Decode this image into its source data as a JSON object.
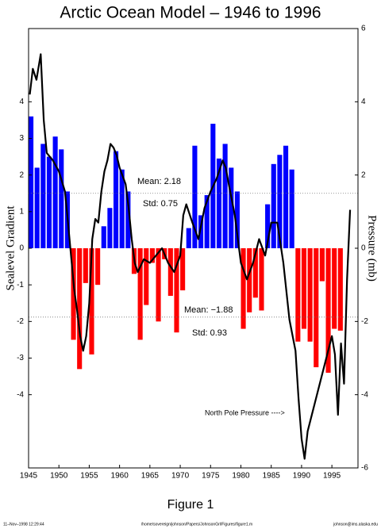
{
  "chart_data": {
    "type": "bar",
    "title": "Arctic Ocean Model – 1946 to 1996",
    "ylabel": "Sealevel Gradient",
    "y2label": "Pressure (mb)",
    "caption": "Figure 1",
    "footer": [
      "11–Nov–1998 12:29:44",
      "/home/sovereign/johnson/Papers/JohnsonGrl/Figures/figure1.m",
      "johnson@ims.alaska.edu"
    ],
    "annotations": [
      "Mean: 2.18",
      "Std: 0.75",
      "Mean: −1.88",
      "Std: 0.93",
      "North Pole Pressure ---->"
    ],
    "hlines": [
      1.5,
      -1.88
    ],
    "xlim": [
      1945,
      1999.3
    ],
    "xticks": [
      1945,
      1950,
      1955,
      1960,
      1965,
      1970,
      1975,
      1980,
      1985,
      1990,
      1995
    ],
    "ylim": [
      -6,
      6
    ],
    "yticks": [
      -4,
      -3,
      -2,
      -1,
      0,
      1,
      2,
      3,
      4
    ],
    "y2lim": [
      -6,
      6
    ],
    "y2ticks": [
      -6,
      -4,
      -2,
      0,
      2,
      4,
      6
    ],
    "positive_color": "#0000ff",
    "negative_color": "#ff0000",
    "bars": {
      "x": [
        1945,
        1946,
        1947,
        1948,
        1949,
        1950,
        1951,
        1952,
        1953,
        1954,
        1955,
        1956,
        1957,
        1958,
        1959,
        1960,
        1961,
        1962,
        1963,
        1964,
        1965,
        1966,
        1967,
        1968,
        1969,
        1970,
        1971,
        1972,
        1973,
        1974,
        1975,
        1976,
        1977,
        1978,
        1979,
        1980,
        1981,
        1982,
        1983,
        1984,
        1985,
        1986,
        1987,
        1988,
        1989,
        1990,
        1991,
        1992,
        1993,
        1994,
        1995,
        1996
      ],
      "values": [
        3.6,
        2.2,
        2.85,
        2.5,
        3.05,
        2.7,
        1.55,
        -2.5,
        -3.3,
        -0.95,
        -2.9,
        -1.0,
        0.6,
        1.1,
        2.65,
        2.15,
        1.55,
        -0.7,
        -2.5,
        -1.55,
        -0.4,
        -2.0,
        -0.3,
        -1.3,
        -2.3,
        -1.15,
        0.55,
        2.8,
        0.9,
        1.45,
        3.4,
        2.45,
        2.85,
        2.2,
        1.55,
        -2.2,
        -1.75,
        -1.35,
        -1.7,
        1.2,
        2.3,
        2.55,
        2.8,
        2.15,
        -2.55,
        -2.2,
        -2.55,
        -3.25,
        -0.9,
        -3.4,
        -2.2,
        -2.25
      ]
    },
    "line": {
      "axis": "y2",
      "color": "#000000",
      "x": [
        1945.2,
        1945.7,
        1946.3,
        1947,
        1947.5,
        1948,
        1949,
        1950,
        1951,
        1951.5,
        1952,
        1952.5,
        1953,
        1953.5,
        1954,
        1954.5,
        1955,
        1955.5,
        1956,
        1956.5,
        1957,
        1957.5,
        1958,
        1958.5,
        1959,
        1959.5,
        1960,
        1961,
        1961.5,
        1962,
        1962.5,
        1963,
        1964,
        1965,
        1966,
        1967,
        1968,
        1969,
        1970,
        1970.5,
        1971,
        1972,
        1973,
        1974,
        1975,
        1976,
        1977,
        1977.5,
        1978,
        1979,
        1979.5,
        1980,
        1981,
        1982,
        1983,
        1984,
        1985,
        1986,
        1987,
        1988,
        1989,
        1989.5,
        1990,
        1990.5,
        1991,
        1992,
        1993,
        1994,
        1995,
        1995.5,
        1996,
        1996.5,
        1997,
        1997.5,
        1998
      ],
      "values": [
        4.2,
        4.9,
        4.6,
        5.3,
        3.5,
        2.6,
        2.4,
        2.1,
        1.55,
        0.7,
        -0.2,
        -1.1,
        -1.7,
        -2.4,
        -2.8,
        -2.4,
        -1.5,
        0.25,
        0.8,
        0.7,
        1.55,
        2.1,
        2.4,
        2.85,
        2.75,
        2.55,
        2.2,
        1.75,
        1.1,
        0.25,
        -0.4,
        -0.65,
        -0.3,
        -0.4,
        -0.2,
        0,
        -0.4,
        -0.65,
        -0.2,
        0.9,
        1.2,
        0.7,
        0.25,
        1.1,
        1.55,
        1.9,
        2.4,
        2.2,
        1.75,
        0.9,
        0.25,
        -0.4,
        -0.85,
        -0.4,
        0.25,
        -0.2,
        0.7,
        0.7,
        -0.4,
        -1.95,
        -2.8,
        -4.1,
        -5.2,
        -5.75,
        -5.0,
        -4.35,
        -3.7,
        -3.05,
        -2.4,
        -2.9,
        -4.55,
        -2.6,
        -3.7,
        -0.85,
        1.05
      ]
    }
  }
}
